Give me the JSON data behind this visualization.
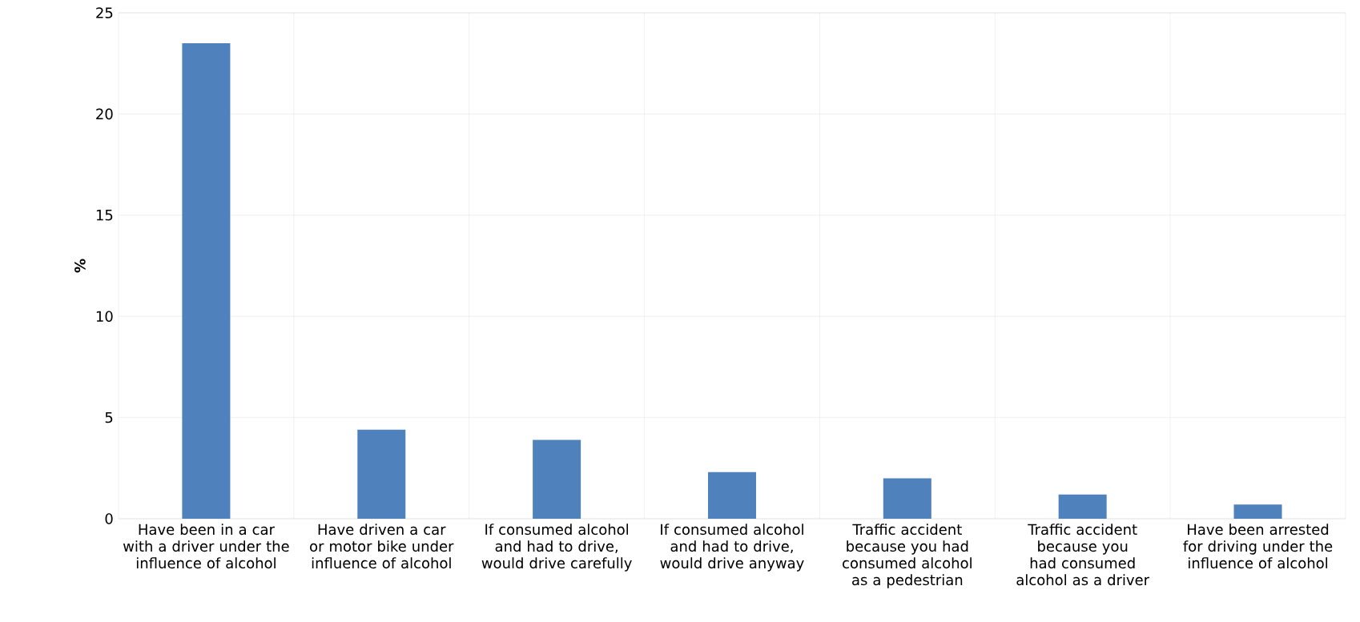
{
  "chart_data": {
    "type": "bar",
    "ylabel": "%",
    "categories": [
      "Have been in a car with a driver under the influence of alcohol",
      "Have driven a car or motor bike under influence of alcohol",
      "If consumed alcohol and had to drive, would drive carefully",
      "If consumed alcohol and had to drive, would drive anyway",
      "Traffic accident because you had consumed alcohol as a pedestrian",
      "Traffic accident because you had consumed alcohol as a driver",
      "Have been arrested for driving under the influence of alcohol"
    ],
    "values": [
      23.5,
      4.4,
      3.9,
      2.3,
      2.0,
      1.2,
      0.7
    ],
    "color": "#4f81bd",
    "ylim": [
      0,
      25
    ],
    "yticks": [
      0,
      5,
      10,
      15,
      20,
      25
    ],
    "grid": true
  }
}
